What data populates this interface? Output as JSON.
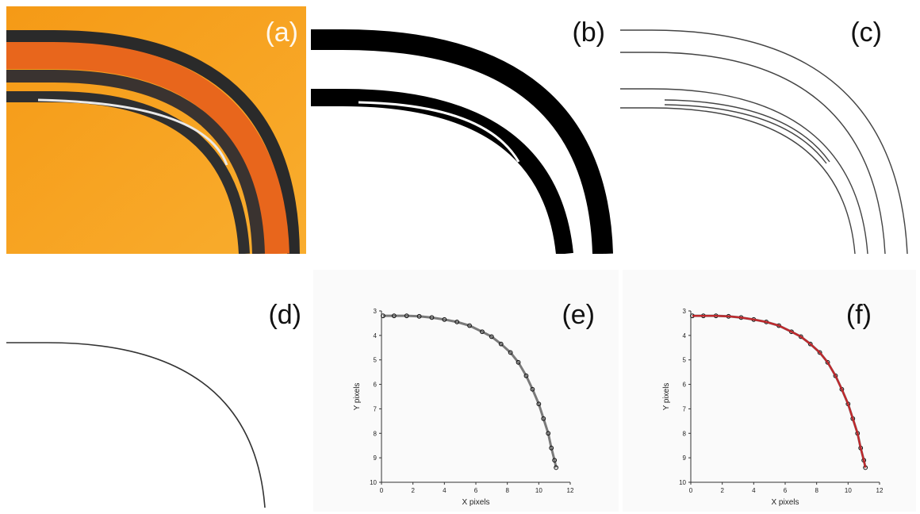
{
  "figure": {
    "panels": [
      {
        "label": "(a)"
      },
      {
        "label": "(b)"
      },
      {
        "label": "(c)"
      },
      {
        "label": "(d)"
      },
      {
        "label": "(e)"
      },
      {
        "label": "(f)"
      }
    ]
  },
  "colors": {
    "photo_background": "#f7a21c",
    "ring_color": "#e8661c",
    "ink": "#111111",
    "fit_line": "#c0282c"
  },
  "chart_data": [
    {
      "type": "scatter",
      "panel": "(e)",
      "title": "",
      "xlabel": "X pixels",
      "ylabel": "Y pixels",
      "xlim": [
        0,
        12
      ],
      "ylim": [
        3,
        10
      ],
      "y_inverted": true,
      "xticks": [
        0,
        2,
        4,
        6,
        8,
        10,
        12
      ],
      "yticks": [
        3,
        4,
        5,
        6,
        7,
        8,
        9,
        10
      ],
      "series": [
        {
          "marker": "open-circle",
          "color": "#111111",
          "x": [
            0.1,
            0.8,
            1.6,
            2.4,
            3.2,
            4.0,
            4.8,
            5.6,
            6.4,
            7.0,
            7.6,
            8.2,
            8.7,
            9.2,
            9.6,
            10.0,
            10.3,
            10.6,
            10.8,
            11.0,
            11.1
          ],
          "y": [
            3.2,
            3.2,
            3.2,
            3.22,
            3.27,
            3.35,
            3.45,
            3.6,
            3.85,
            4.05,
            4.35,
            4.7,
            5.1,
            5.65,
            6.2,
            6.8,
            7.4,
            8.0,
            8.6,
            9.1,
            9.4
          ]
        }
      ]
    },
    {
      "type": "scatter",
      "panel": "(f)",
      "title": "",
      "xlabel": "X pixels",
      "ylabel": "Y pixels",
      "xlim": [
        0,
        12
      ],
      "ylim": [
        3,
        10
      ],
      "y_inverted": true,
      "xticks": [
        0,
        2,
        4,
        6,
        8,
        10,
        12
      ],
      "yticks": [
        3,
        4,
        5,
        6,
        7,
        8,
        9,
        10
      ],
      "series": [
        {
          "marker": "open-circle",
          "color": "#111111",
          "x": [
            0.1,
            0.8,
            1.6,
            2.4,
            3.2,
            4.0,
            4.8,
            5.6,
            6.4,
            7.0,
            7.6,
            8.2,
            8.7,
            9.2,
            9.6,
            10.0,
            10.3,
            10.6,
            10.8,
            11.0,
            11.1
          ],
          "y": [
            3.2,
            3.2,
            3.2,
            3.22,
            3.27,
            3.35,
            3.45,
            3.6,
            3.85,
            4.05,
            4.35,
            4.7,
            5.1,
            5.65,
            6.2,
            6.8,
            7.4,
            8.0,
            8.6,
            9.1,
            9.4
          ]
        },
        {
          "marker": "line",
          "color": "#c0282c",
          "x": [
            0.1,
            0.8,
            1.6,
            2.4,
            3.2,
            4.0,
            4.8,
            5.6,
            6.4,
            7.0,
            7.6,
            8.2,
            8.7,
            9.2,
            9.6,
            10.0,
            10.3,
            10.6,
            10.8,
            11.0,
            11.1
          ],
          "y": [
            3.2,
            3.2,
            3.2,
            3.22,
            3.27,
            3.35,
            3.45,
            3.6,
            3.85,
            4.05,
            4.35,
            4.7,
            5.1,
            5.65,
            6.2,
            6.8,
            7.4,
            8.0,
            8.6,
            9.1,
            9.4
          ]
        }
      ]
    }
  ]
}
